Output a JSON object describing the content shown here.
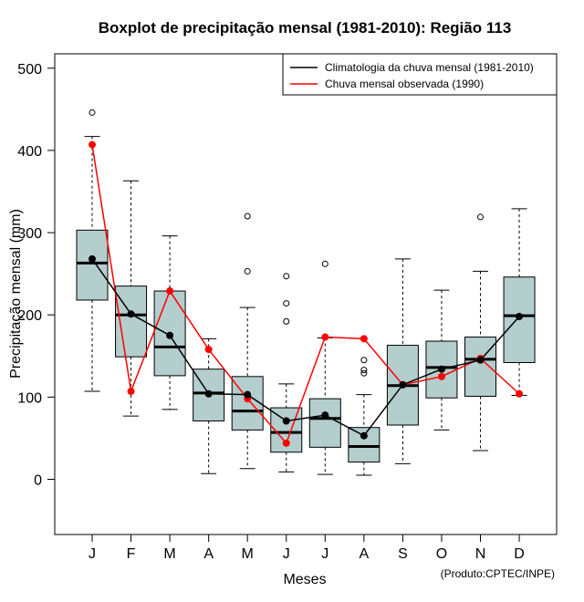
{
  "chart_data": {
    "type": "boxplot",
    "title": "Boxplot de precipitação mensal (1981-2010): Região 113",
    "xlabel": "Meses",
    "ylabel": "Precipitação mensal (mm)",
    "ylim": [
      -65,
      515
    ],
    "yticks": [
      0,
      100,
      200,
      300,
      400,
      500
    ],
    "categories": [
      "J",
      "F",
      "M",
      "A",
      "M",
      "J",
      "J",
      "A",
      "S",
      "O",
      "N",
      "D"
    ],
    "boxes": [
      {
        "min": 107,
        "q1": 218,
        "median": 263,
        "q3": 303,
        "max": 417,
        "outliers": [
          446
        ]
      },
      {
        "min": 77,
        "q1": 149,
        "median": 200,
        "q3": 235,
        "max": 363,
        "outliers": []
      },
      {
        "min": 85,
        "q1": 126,
        "median": 161,
        "q3": 229,
        "max": 296,
        "outliers": []
      },
      {
        "min": 7,
        "q1": 71,
        "median": 105,
        "q3": 134,
        "max": 171,
        "outliers": []
      },
      {
        "min": 13,
        "q1": 60,
        "median": 83,
        "q3": 125,
        "max": 209,
        "outliers": [
          253,
          320
        ]
      },
      {
        "min": 9,
        "q1": 33,
        "median": 57,
        "q3": 87,
        "max": 116,
        "outliers": [
          192,
          214,
          247
        ]
      },
      {
        "min": 6,
        "q1": 39,
        "median": 74,
        "q3": 98,
        "max": 172,
        "outliers": [
          262
        ]
      },
      {
        "min": 5,
        "q1": 21,
        "median": 40,
        "q3": 63,
        "max": 103,
        "outliers": [
          129,
          133,
          145
        ]
      },
      {
        "min": 19,
        "q1": 66,
        "median": 114,
        "q3": 163,
        "max": 268,
        "outliers": []
      },
      {
        "min": 60,
        "q1": 99,
        "median": 136,
        "q3": 168,
        "max": 230,
        "outliers": []
      },
      {
        "min": 35,
        "q1": 101,
        "median": 146,
        "q3": 173,
        "max": 253,
        "outliers": [
          319
        ]
      },
      {
        "min": 102,
        "q1": 142,
        "median": 199,
        "q3": 246,
        "max": 329,
        "outliers": []
      }
    ],
    "series": [
      {
        "name": "Climatologia da chuva mensal (1981-2010)",
        "color": "#000000",
        "values": [
          268,
          201,
          175,
          104,
          103,
          71,
          78,
          53,
          115,
          134,
          145,
          198
        ]
      },
      {
        "name": "Chuva mensal observada (1990)",
        "color": "#ff0000",
        "values": [
          407,
          107,
          229,
          158,
          98,
          44,
          173,
          171,
          115,
          125,
          147,
          104
        ]
      }
    ],
    "box_color": "#b4cdcd",
    "legend_position": "top-right",
    "credit": "(Produto:CPTEC/INPE)"
  }
}
